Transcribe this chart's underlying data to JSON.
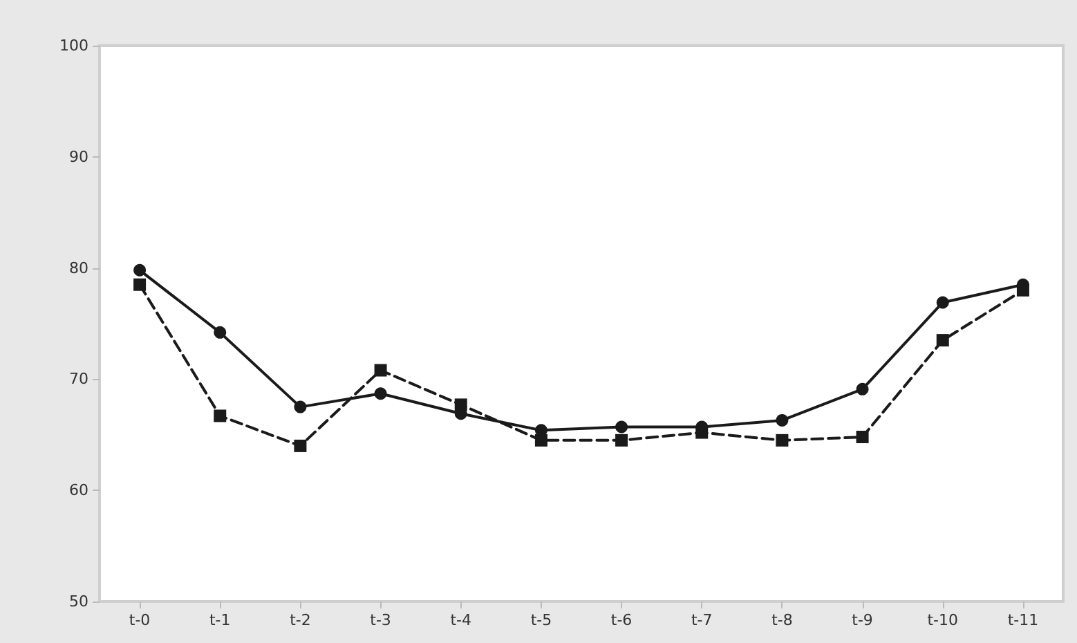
{
  "chart_data": {
    "type": "line",
    "categories": [
      "t-0",
      "t-1",
      "t-2",
      "t-3",
      "t-4",
      "t-5",
      "t-6",
      "t-7",
      "t-8",
      "t-9",
      "t-10",
      "t-11"
    ],
    "series": [
      {
        "color": "#1a1a1a",
        "marker": "circle",
        "line_style": "solid",
        "values": [
          79.8,
          74.2,
          67.5,
          68.7,
          66.9,
          65.4,
          65.7,
          65.7,
          66.3,
          69.1,
          76.9,
          78.5
        ]
      },
      {
        "color": "#1a1a1a",
        "marker": "square",
        "line_style": "dashed",
        "values": [
          78.5,
          66.7,
          64.0,
          70.8,
          67.7,
          64.5,
          64.5,
          65.2,
          64.5,
          64.8,
          73.5,
          78.0
        ]
      }
    ],
    "ylim": [
      50,
      100
    ],
    "yticks": [
      50,
      60,
      70,
      80,
      90,
      100
    ],
    "grid": false
  }
}
